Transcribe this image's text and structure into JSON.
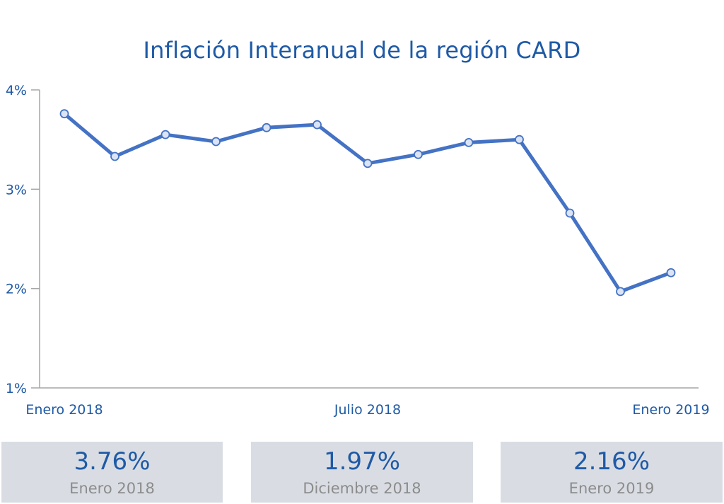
{
  "chart_data": {
    "type": "line",
    "title": "Inflación Interanual de la región CARD",
    "xlabel": "",
    "ylabel": "",
    "ylim": [
      1,
      4
    ],
    "y_ticks": [
      "4%",
      "3%",
      "2%",
      "1%"
    ],
    "y_tick_values": [
      4,
      3,
      2,
      1
    ],
    "x_tick_labels": [
      {
        "index": 0,
        "label": "Enero 2018"
      },
      {
        "index": 6,
        "label": "Julio 2018"
      },
      {
        "index": 12,
        "label": "Enero 2019"
      }
    ],
    "series": [
      {
        "values": [
          3.76,
          3.33,
          3.55,
          3.48,
          3.62,
          3.65,
          3.26,
          3.35,
          3.47,
          3.5,
          2.76,
          1.97,
          2.16
        ]
      }
    ],
    "grid": false,
    "line_color": "#4472c4",
    "marker_fill": "#dbe4f5"
  },
  "kpis": [
    {
      "value": "3.76%",
      "label": "Enero 2018"
    },
    {
      "value": "1.97%",
      "label": "Diciembre 2018"
    },
    {
      "value": "2.16%",
      "label": "Enero 2019"
    }
  ]
}
